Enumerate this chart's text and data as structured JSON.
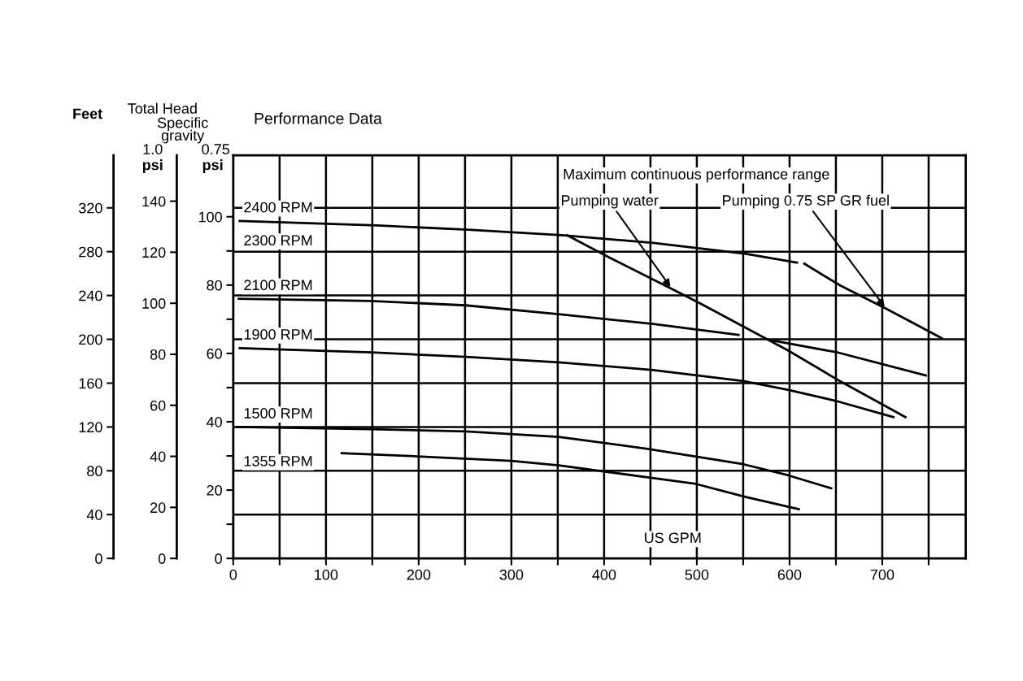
{
  "chart_data": {
    "type": "line",
    "title": "Performance Data",
    "xlabel": "US GPM",
    "ylabel": "Feet",
    "y2label": "psi",
    "y3label": "psi",
    "xlim": [
      0,
      790
    ],
    "xticks": [
      0,
      {
        "value": 50,
        "label": null
      },
      100,
      {
        "value": 150,
        "label": null
      },
      200,
      {
        "value": 250,
        "label": null
      },
      300,
      {
        "value": 350,
        "label": null
      },
      400,
      {
        "value": 450,
        "label": null
      },
      500,
      {
        "value": 550,
        "label": null
      },
      600,
      {
        "value": 650,
        "label": null
      },
      700,
      {
        "value": 750,
        "label": null
      }
    ],
    "ylim": [
      0,
      368
    ],
    "yticks": [
      0,
      40,
      80,
      120,
      160,
      200,
      240,
      280,
      320
    ],
    "y2lim": [
      0,
      158
    ],
    "y2ticks": [
      0,
      20,
      40,
      60,
      80,
      100,
      120,
      140
    ],
    "y3lim": [
      0,
      118
    ],
    "y3ticks": [
      0,
      {
        "value": 10,
        "label": null
      },
      20,
      {
        "value": 30,
        "label": null
      },
      40,
      {
        "value": 50,
        "label": null
      },
      60,
      {
        "value": 70,
        "label": null
      },
      80,
      {
        "value": 90,
        "label": null
      },
      100
    ],
    "grid": true,
    "marker": "none",
    "line_style": "solid",
    "annotations": [
      "2300 RPM",
      "Maximum continuous performance range",
      "Total Head",
      "Specific gravity",
      "1.0",
      "0.75"
    ],
    "series": [
      {
        "name": "2400 RPM",
        "color": "#000000",
        "x": [
          7,
          155,
          253,
          354,
          453,
          553,
          608
        ],
        "values": [
          308,
          304,
          300,
          295,
          288,
          278,
          270
        ]
      },
      {
        "name": "2100 RPM",
        "color": "#000000",
        "x": [
          6,
          149,
          251,
          351,
          453,
          545,
          563,
          581,
          652,
          747
        ],
        "values": [
          237,
          235,
          231,
          223,
          214,
          204,
          null,
          199,
          188,
          167
        ]
      },
      {
        "name": "1900 RPM",
        "color": "#000000",
        "x": [
          7,
          149,
          251,
          351,
          453,
          550,
          598,
          649,
          712
        ],
        "values": [
          192,
          188,
          184,
          179,
          172,
          162,
          154,
          144,
          129
        ]
      },
      {
        "name": "1500 RPM",
        "color": "#000000",
        "x": [
          4,
          149,
          251,
          351,
          447,
          550,
          598,
          645
        ],
        "values": [
          120,
          118,
          116,
          111,
          100,
          86,
          76,
          64
        ]
      },
      {
        "name": "1355 RPM",
        "color": "#000000",
        "x": [
          117,
          203,
          300,
          351,
          447,
          499,
          553,
          610
        ],
        "values": [
          96,
          93,
          89,
          85,
          74,
          68,
          56,
          45
        ]
      },
      {
        "name": "Pumping water",
        "color": "#000000",
        "x": [
          360,
          405,
          473,
          503,
          598,
          652,
          725
        ],
        "values": [
          295,
          275,
          246,
          233,
          190,
          163,
          129
        ]
      },
      {
        "name": "Pumping 0.75 SP GR fuel",
        "color": "#000000",
        "x": [
          616,
          655,
          704,
          733,
          764
        ],
        "values": [
          269,
          249,
          228,
          215,
          201
        ]
      }
    ]
  }
}
